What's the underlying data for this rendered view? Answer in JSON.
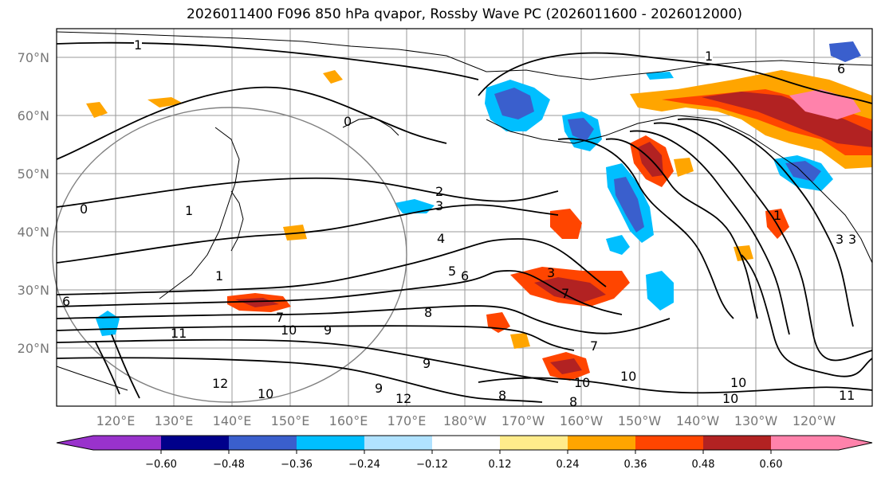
{
  "title": "2026011400 F096 850 hPa qvapor, Rossby Wave PC (2026011600 - 2026012000)",
  "lat_labels": [
    "70°N",
    "60°N",
    "50°N",
    "40°N",
    "30°N",
    "20°N"
  ],
  "lon_labels": [
    "120°E",
    "130°E",
    "140°E",
    "150°E",
    "160°E",
    "170°E",
    "180°W",
    "170°W",
    "160°W",
    "150°W",
    "140°W",
    "130°W",
    "120°W"
  ],
  "contour_labels": [
    "1",
    "1",
    "0",
    "2",
    "3",
    "0",
    "1",
    "4",
    "5",
    "6",
    "3",
    "7",
    "7",
    "8",
    "9",
    "10",
    "11",
    "12",
    "10",
    "9",
    "10",
    "8",
    "6",
    "12",
    "10",
    "11",
    "10",
    "1",
    "3",
    "3",
    "6",
    "10",
    "7",
    "8",
    "9",
    "1"
  ],
  "colorbar": {
    "colors": [
      "#9932cc",
      "#00008b",
      "#3a5fcd",
      "#00bfff",
      "#b0e2ff",
      "#ffffff",
      "#ffec8b",
      "#ffa500",
      "#ff4500",
      "#b22222",
      "#ff82ab"
    ],
    "tick_labels": [
      "−0.60",
      "−0.48",
      "−0.36",
      "−0.24",
      "−0.12",
      "0.12",
      "0.24",
      "0.36",
      "0.48",
      "0.60"
    ]
  }
}
